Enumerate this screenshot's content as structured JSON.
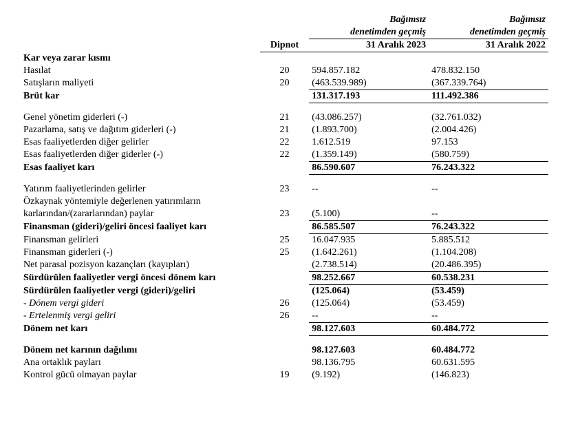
{
  "headers": {
    "audit_line1": "Bağımsız",
    "audit_line2": "denetimden geçmiş",
    "note": "Dipnot",
    "date_2023": "31 Aralık 2023",
    "date_2022": "31 Aralık 2022"
  },
  "section_pl": "Kar veya zarar kısmı",
  "rows": {
    "revenue": {
      "label": "Hasılat",
      "note": "20",
      "v23": "594.857.182",
      "v22": "478.832.150"
    },
    "cogs": {
      "label": "Satışların maliyeti",
      "note": "20",
      "v23": "(463.539.989)",
      "v22": "(367.339.764)"
    },
    "gross": {
      "label": "Brüt kar",
      "note": "",
      "v23": "131.317.193",
      "v22": "111.492.386"
    },
    "admin": {
      "label": "Genel yönetim giderleri (-)",
      "note": "21",
      "v23": "(43.086.257)",
      "v22": "(32.761.032)"
    },
    "selling": {
      "label": "Pazarlama, satış ve dağıtım giderleri (-)",
      "note": "21",
      "v23": "(1.893.700)",
      "v22": "(2.004.426)"
    },
    "other_inc": {
      "label": "Esas faaliyetlerden diğer gelirler",
      "note": "22",
      "v23": "1.612.519",
      "v22": "97.153"
    },
    "other_exp": {
      "label": "Esas faaliyetlerden diğer giderler (-)",
      "note": "22",
      "v23": "(1.359.149)",
      "v22": "(580.759)"
    },
    "op_profit": {
      "label": "Esas faaliyet karı",
      "note": "",
      "v23": "86.590.607",
      "v22": "76.243.322"
    },
    "inv_inc": {
      "label": "Yatırım faaliyetlerinden gelirler",
      "note": "23",
      "v23": "--",
      "v22": "--"
    },
    "equity1": {
      "label": "Özkaynak yöntemiyle değerlenen yatırımların",
      "note": "",
      "v23": "",
      "v22": ""
    },
    "equity2": {
      "label": "karlarından/(zararlarından) paylar",
      "note": "23",
      "v23": "(5.100)",
      "v22": "--"
    },
    "prefin": {
      "label": "Finansman (gideri)/geliri öncesi faaliyet karı",
      "note": "",
      "v23": "86.585.507",
      "v22": "76.243.322"
    },
    "fin_inc": {
      "label": "Finansman gelirleri",
      "note": "25",
      "v23": "16.047.935",
      "v22": "5.885.512"
    },
    "fin_exp": {
      "label": "Finansman giderleri (-)",
      "note": "25",
      "v23": "(1.642.261)",
      "v22": "(1.104.208)"
    },
    "monetary": {
      "label": "Net parasal pozisyon kazançları (kayıpları)",
      "note": "",
      "v23": "(2.738.514)",
      "v22": "(20.486.395)"
    },
    "pbt": {
      "label": "Sürdürülen faaliyetler vergi öncesi dönem karı",
      "note": "",
      "v23": "98.252.667",
      "v22": "60.538.231"
    },
    "tax": {
      "label": "Sürdürülen faaliyetler vergi (gideri)/geliri",
      "note": "",
      "v23": "(125.064)",
      "v22": "(53.459)"
    },
    "curr_tax": {
      "label": "- Dönem vergi gideri",
      "note": "26",
      "v23": "(125.064)",
      "v22": "(53.459)"
    },
    "def_tax": {
      "label": "- Ertelenmiş vergi geliri",
      "note": "26",
      "v23": "--",
      "v22": "--"
    },
    "net": {
      "label": "Dönem net karı",
      "note": "",
      "v23": "98.127.603",
      "v22": "60.484.772"
    },
    "dist_title": {
      "label": "Dönem net karının dağılımı",
      "note": "",
      "v23": "98.127.603",
      "v22": "60.484.772"
    },
    "parent": {
      "label": "Ana ortaklık payları",
      "note": "",
      "v23": "98.136.795",
      "v22": "60.631.595"
    },
    "nci": {
      "label": "Kontrol gücü olmayan paylar",
      "note": "19",
      "v23": "(9.192)",
      "v22": "(146.823)"
    }
  }
}
